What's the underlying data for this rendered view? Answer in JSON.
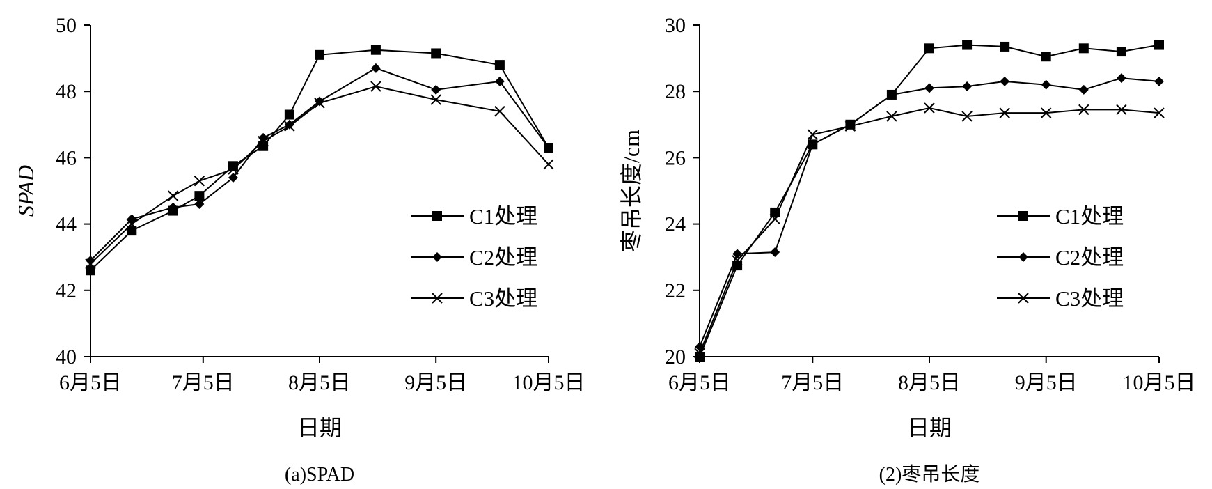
{
  "chart_data": [
    {
      "type": "line",
      "caption": "(a)SPAD",
      "xlabel": "日期",
      "ylabel": "SPAD",
      "ylim": [
        40,
        50
      ],
      "yticks": [
        40,
        42,
        44,
        46,
        48,
        50
      ],
      "xticks": [
        "6月5日",
        "7月5日",
        "8月5日",
        "9月5日",
        "10月5日"
      ],
      "xtick_days": [
        0,
        30,
        61,
        92,
        122
      ],
      "x_days": [
        0,
        11,
        22,
        29,
        38,
        46,
        53,
        61,
        76,
        92,
        109,
        122
      ],
      "series": [
        {
          "name": "C1处理",
          "marker": "square",
          "values": [
            42.6,
            43.8,
            44.4,
            44.85,
            45.75,
            46.35,
            47.3,
            49.1,
            49.25,
            49.15,
            48.8,
            46.3
          ]
        },
        {
          "name": "C2处理",
          "marker": "diamond",
          "values": [
            42.9,
            44.15,
            44.5,
            44.6,
            45.4,
            46.6,
            47.0,
            47.7,
            48.7,
            48.05,
            48.3,
            46.3
          ]
        },
        {
          "name": "C3处理",
          "marker": "x",
          "values": [
            42.8,
            44.0,
            44.85,
            45.3,
            45.65,
            46.5,
            46.95,
            47.65,
            48.15,
            47.75,
            47.4,
            45.8
          ]
        }
      ],
      "legend_position": "middle-right",
      "grid": false
    },
    {
      "type": "line",
      "caption": "(2)枣吊长度",
      "xlabel": "日期",
      "ylabel": "枣吊长度/cm",
      "ylim": [
        20,
        30
      ],
      "yticks": [
        20,
        22,
        24,
        26,
        28,
        30
      ],
      "xticks": [
        "6月5日",
        "7月5日",
        "8月5日",
        "9月5日",
        "10月5日"
      ],
      "xtick_days": [
        0,
        30,
        61,
        92,
        122
      ],
      "x_days": [
        0,
        10,
        20,
        30,
        40,
        51,
        61,
        71,
        81,
        92,
        102,
        112,
        122
      ],
      "series": [
        {
          "name": "C1处理",
          "marker": "square",
          "values": [
            20.0,
            22.75,
            24.35,
            26.4,
            27.0,
            27.9,
            29.3,
            29.4,
            29.35,
            29.05,
            29.3,
            29.2,
            29.4
          ]
        },
        {
          "name": "C2处理",
          "marker": "diamond",
          "values": [
            20.3,
            23.1,
            23.15,
            26.4,
            27.0,
            27.9,
            28.1,
            28.15,
            28.3,
            28.2,
            28.05,
            28.4,
            28.3
          ]
        },
        {
          "name": "C3处理",
          "marker": "x",
          "values": [
            20.1,
            22.9,
            24.15,
            26.7,
            26.95,
            27.25,
            27.5,
            27.25,
            27.35,
            27.35,
            27.45,
            27.45,
            27.35
          ]
        }
      ],
      "legend_position": "middle-right",
      "grid": false
    }
  ]
}
